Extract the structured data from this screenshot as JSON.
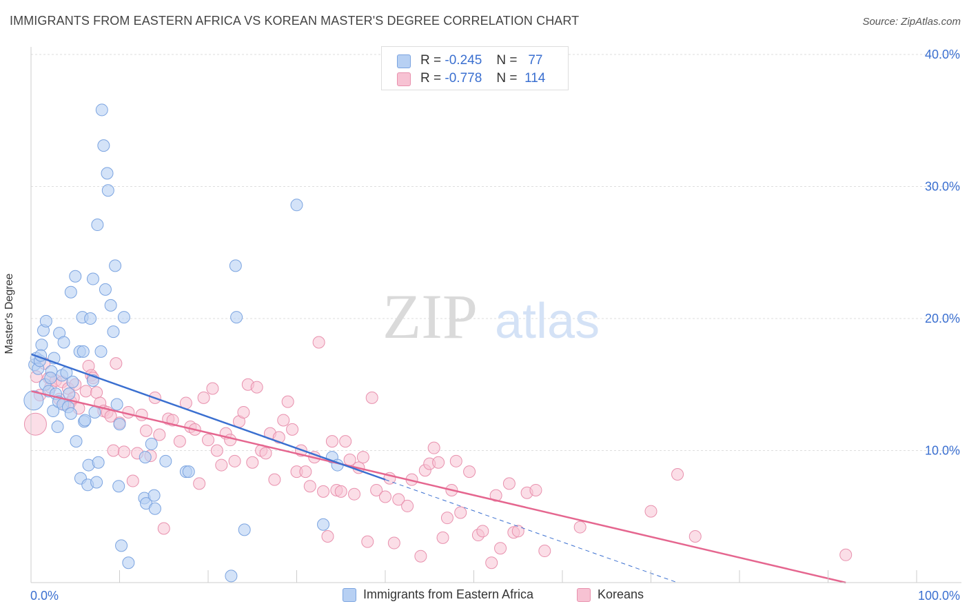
{
  "title": "IMMIGRANTS FROM EASTERN AFRICA VS KOREAN MASTER'S DEGREE CORRELATION CHART",
  "source": "Source: ZipAtlas.com",
  "watermark": {
    "zip": "ZIP",
    "atlas": "atlas"
  },
  "legend_top": [
    {
      "r_label": "R =",
      "r_value": "-0.245",
      "n_label": "N =",
      "n_value": "77"
    },
    {
      "r_label": "R =",
      "r_value": "-0.778",
      "n_label": "N =",
      "n_value": "114"
    }
  ],
  "colors": {
    "blue_fill": "#b7d0f3",
    "blue_stroke": "#7aa3e0",
    "blue_line": "#3a6fd0",
    "pink_fill": "#f7c2d3",
    "pink_stroke": "#e890ad",
    "pink_line": "#e5668f",
    "grid": "#dddddd",
    "axis_label": "#3a6fd0"
  },
  "chart_data": {
    "type": "scatter",
    "xlabel": "",
    "ylabel": "Master's Degree",
    "xlim": [
      0,
      100
    ],
    "ylim": [
      0,
      40
    ],
    "x_tick_labels": [
      "0.0%",
      "100.0%"
    ],
    "y_ticks": [
      10,
      20,
      30,
      40
    ],
    "y_tick_labels": [
      "10.0%",
      "20.0%",
      "30.0%",
      "40.0%"
    ],
    "grid": true,
    "legend_position": "bottom",
    "series": [
      {
        "name": "Immigrants from Eastern Africa",
        "color": "#b7d0f3",
        "trend": {
          "x": [
            0,
            40
          ],
          "y": [
            17.3,
            7.8
          ],
          "dashed_to": [
            73,
            0
          ]
        },
        "points": [
          [
            0.3,
            13.8
          ],
          [
            0.4,
            16.5
          ],
          [
            0.6,
            17.0
          ],
          [
            0.8,
            16.2
          ],
          [
            1.0,
            16.8
          ],
          [
            1.2,
            18.0
          ],
          [
            1.4,
            19.1
          ],
          [
            1.6,
            15.0
          ],
          [
            1.7,
            19.8
          ],
          [
            2.0,
            14.5
          ],
          [
            2.3,
            16.0
          ],
          [
            2.5,
            13.0
          ],
          [
            2.6,
            17.0
          ],
          [
            2.8,
            14.3
          ],
          [
            3.0,
            11.8
          ],
          [
            3.1,
            13.7
          ],
          [
            3.2,
            18.9
          ],
          [
            3.5,
            15.7
          ],
          [
            3.6,
            13.5
          ],
          [
            3.7,
            18.2
          ],
          [
            4.0,
            15.9
          ],
          [
            4.2,
            13.3
          ],
          [
            4.3,
            14.3
          ],
          [
            4.5,
            12.8
          ],
          [
            4.5,
            22.0
          ],
          [
            4.7,
            15.2
          ],
          [
            5.0,
            23.2
          ],
          [
            5.1,
            10.7
          ],
          [
            5.5,
            17.5
          ],
          [
            5.6,
            7.9
          ],
          [
            5.8,
            20.1
          ],
          [
            5.9,
            17.5
          ],
          [
            6.0,
            12.2
          ],
          [
            6.1,
            12.3
          ],
          [
            6.4,
            7.4
          ],
          [
            6.5,
            8.9
          ],
          [
            6.7,
            20.0
          ],
          [
            7.0,
            23.0
          ],
          [
            7.0,
            15.3
          ],
          [
            7.2,
            12.9
          ],
          [
            7.4,
            7.6
          ],
          [
            7.5,
            27.1
          ],
          [
            7.6,
            9.1
          ],
          [
            7.9,
            17.5
          ],
          [
            8.0,
            35.8
          ],
          [
            8.2,
            33.1
          ],
          [
            8.4,
            22.2
          ],
          [
            8.6,
            31.0
          ],
          [
            8.7,
            29.7
          ],
          [
            9.0,
            21.0
          ],
          [
            9.3,
            19.0
          ],
          [
            9.5,
            24.0
          ],
          [
            9.7,
            13.5
          ],
          [
            9.9,
            7.3
          ],
          [
            10.0,
            12.0
          ],
          [
            10.2,
            2.8
          ],
          [
            10.5,
            20.1
          ],
          [
            11.0,
            1.5
          ],
          [
            12.8,
            6.4
          ],
          [
            12.9,
            9.5
          ],
          [
            13.0,
            6.0
          ],
          [
            13.6,
            10.5
          ],
          [
            13.9,
            6.6
          ],
          [
            14.0,
            5.6
          ],
          [
            15.2,
            9.2
          ],
          [
            17.5,
            8.4
          ],
          [
            17.8,
            8.4
          ],
          [
            22.6,
            0.5
          ],
          [
            23.1,
            24.0
          ],
          [
            23.2,
            20.1
          ],
          [
            24.1,
            4.0
          ],
          [
            30.0,
            28.6
          ],
          [
            33.0,
            4.4
          ],
          [
            34.0,
            9.5
          ],
          [
            34.6,
            8.9
          ],
          [
            2.2,
            15.5
          ],
          [
            1.1,
            17.2
          ]
        ]
      },
      {
        "name": "Koreans",
        "color": "#f7c2d3",
        "trend": {
          "x": [
            0,
            92
          ],
          "y": [
            14.5,
            0
          ]
        },
        "points": [
          [
            0.5,
            12.0
          ],
          [
            0.6,
            15.6
          ],
          [
            1.0,
            14.2
          ],
          [
            1.5,
            16.6
          ],
          [
            2.0,
            15.5
          ],
          [
            2.2,
            14.8
          ],
          [
            2.8,
            15.3
          ],
          [
            3.2,
            13.9
          ],
          [
            3.5,
            15.2
          ],
          [
            3.8,
            13.5
          ],
          [
            4.2,
            14.7
          ],
          [
            4.5,
            13.7
          ],
          [
            4.8,
            14.0
          ],
          [
            5.0,
            15.0
          ],
          [
            5.4,
            13.2
          ],
          [
            6.2,
            14.5
          ],
          [
            6.5,
            16.4
          ],
          [
            6.8,
            15.7
          ],
          [
            7.0,
            15.5
          ],
          [
            7.4,
            14.4
          ],
          [
            7.8,
            13.6
          ],
          [
            8.2,
            13.0
          ],
          [
            8.6,
            12.9
          ],
          [
            9.0,
            12.6
          ],
          [
            9.3,
            10.0
          ],
          [
            9.6,
            16.6
          ],
          [
            10.0,
            12.1
          ],
          [
            10.5,
            9.9
          ],
          [
            11.0,
            12.9
          ],
          [
            11.5,
            7.7
          ],
          [
            12.0,
            9.8
          ],
          [
            12.5,
            12.7
          ],
          [
            13.0,
            11.5
          ],
          [
            13.5,
            9.6
          ],
          [
            14.0,
            14.0
          ],
          [
            14.5,
            11.2
          ],
          [
            15.0,
            4.1
          ],
          [
            15.5,
            12.4
          ],
          [
            16.0,
            12.3
          ],
          [
            16.8,
            10.7
          ],
          [
            17.5,
            13.6
          ],
          [
            18.0,
            11.8
          ],
          [
            18.5,
            11.6
          ],
          [
            19.0,
            7.5
          ],
          [
            19.5,
            14.0
          ],
          [
            20.0,
            10.8
          ],
          [
            20.5,
            14.7
          ],
          [
            21.0,
            10.0
          ],
          [
            21.5,
            8.9
          ],
          [
            22.0,
            11.3
          ],
          [
            22.5,
            10.8
          ],
          [
            23.0,
            9.2
          ],
          [
            23.5,
            12.2
          ],
          [
            24.0,
            12.9
          ],
          [
            24.5,
            15.0
          ],
          [
            25.0,
            9.1
          ],
          [
            25.5,
            14.8
          ],
          [
            26.0,
            10.0
          ],
          [
            26.5,
            9.8
          ],
          [
            27.0,
            11.3
          ],
          [
            27.5,
            7.8
          ],
          [
            28.0,
            11.0
          ],
          [
            28.5,
            12.3
          ],
          [
            29.0,
            13.7
          ],
          [
            29.5,
            11.6
          ],
          [
            30.0,
            8.4
          ],
          [
            30.5,
            10.0
          ],
          [
            31.0,
            8.4
          ],
          [
            31.5,
            7.3
          ],
          [
            32.0,
            9.5
          ],
          [
            32.5,
            18.2
          ],
          [
            33.0,
            6.9
          ],
          [
            33.5,
            3.5
          ],
          [
            34.0,
            10.7
          ],
          [
            34.5,
            7.0
          ],
          [
            35.0,
            6.9
          ],
          [
            35.5,
            10.7
          ],
          [
            36.0,
            9.3
          ],
          [
            36.5,
            6.7
          ],
          [
            37.0,
            8.7
          ],
          [
            37.5,
            9.5
          ],
          [
            38.0,
            3.1
          ],
          [
            38.5,
            14.0
          ],
          [
            39.0,
            7.0
          ],
          [
            40.0,
            6.5
          ],
          [
            40.5,
            7.9
          ],
          [
            41.0,
            3.0
          ],
          [
            41.5,
            6.3
          ],
          [
            42.5,
            5.8
          ],
          [
            43.0,
            7.8
          ],
          [
            44.0,
            2.0
          ],
          [
            44.5,
            8.5
          ],
          [
            45.0,
            9.0
          ],
          [
            45.5,
            10.2
          ],
          [
            46.0,
            9.1
          ],
          [
            46.5,
            3.4
          ],
          [
            47.0,
            4.9
          ],
          [
            47.5,
            7.0
          ],
          [
            48.0,
            9.2
          ],
          [
            48.5,
            5.3
          ],
          [
            49.5,
            8.4
          ],
          [
            50.5,
            3.6
          ],
          [
            51.0,
            3.9
          ],
          [
            52.0,
            1.5
          ],
          [
            52.5,
            6.6
          ],
          [
            53.0,
            2.6
          ],
          [
            54.0,
            7.5
          ],
          [
            54.5,
            3.8
          ],
          [
            55.0,
            3.9
          ],
          [
            56.0,
            6.8
          ],
          [
            57.0,
            7.0
          ],
          [
            58.0,
            2.4
          ],
          [
            62.0,
            4.2
          ],
          [
            70.0,
            5.4
          ],
          [
            73.0,
            8.2
          ],
          [
            75.0,
            3.5
          ],
          [
            92.0,
            2.1
          ]
        ]
      }
    ]
  },
  "legend_bottom": [
    "Immigrants from Eastern Africa",
    "Koreans"
  ]
}
